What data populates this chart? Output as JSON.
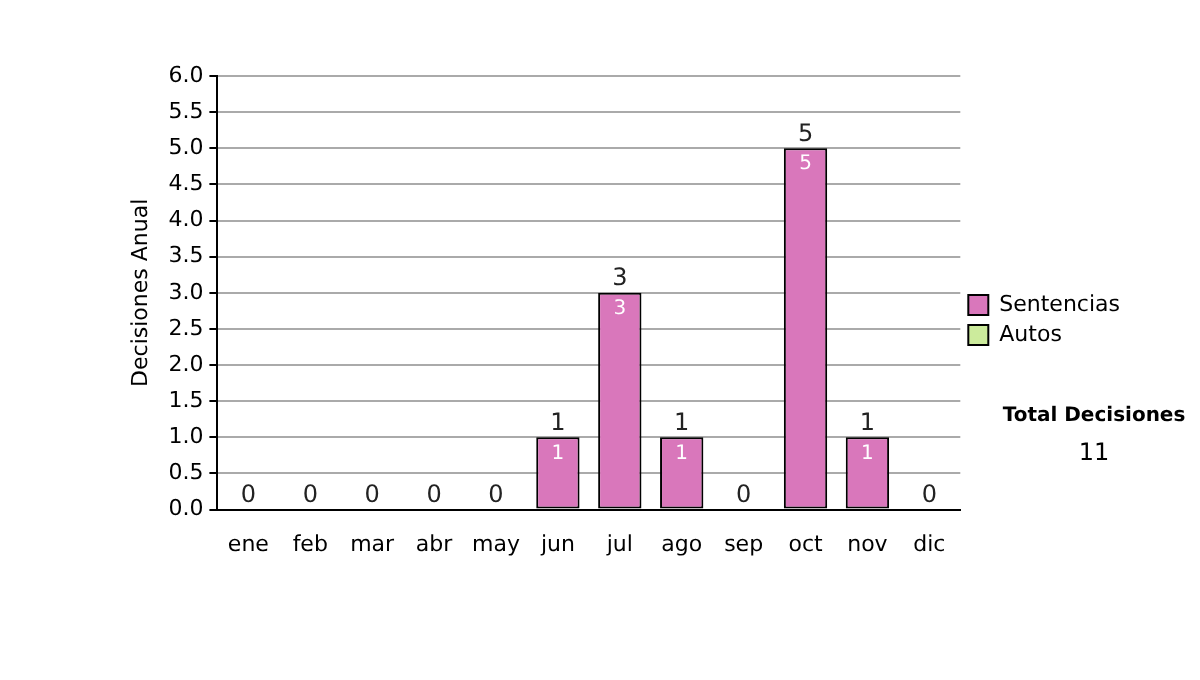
{
  "chart_data": {
    "type": "bar",
    "stacked": true,
    "ylabel": "Decisiones Anual",
    "categories": [
      "ene",
      "feb",
      "mar",
      "abr",
      "may",
      "jun",
      "jul",
      "ago",
      "sep",
      "oct",
      "nov",
      "dic"
    ],
    "series": [
      {
        "name": "Sentencias",
        "color": "#d977bb",
        "values": [
          0,
          0,
          0,
          0,
          0,
          1,
          3,
          1,
          0,
          5,
          1,
          0
        ],
        "value_labels": [
          null,
          null,
          null,
          null,
          null,
          "1",
          "3",
          "1",
          null,
          "5",
          "1",
          null
        ]
      },
      {
        "name": "Autos",
        "color": "#cceb9c",
        "values": [
          0,
          0,
          0,
          0,
          0,
          0,
          0,
          0,
          0,
          0,
          0,
          0
        ]
      }
    ],
    "totals": [
      "0",
      "0",
      "0",
      "0",
      "0",
      "1",
      "3",
      "1",
      "0",
      "5",
      "1",
      "0"
    ],
    "ylim": [
      0,
      6
    ],
    "yticks": [
      {
        "value": 0,
        "label": "0.0"
      },
      {
        "value": 0.5,
        "label": "0.5"
      },
      {
        "value": 1,
        "label": "1.0"
      },
      {
        "value": 1.5,
        "label": "1.5"
      },
      {
        "value": 2,
        "label": "2.0"
      },
      {
        "value": 2.5,
        "label": "2.5"
      },
      {
        "value": 3,
        "label": "3.0"
      },
      {
        "value": 3.5,
        "label": "3.5"
      },
      {
        "value": 4,
        "label": "4.0"
      },
      {
        "value": 4.5,
        "label": "4.5"
      },
      {
        "value": 5,
        "label": "5.0"
      },
      {
        "value": 5.5,
        "label": "5.5"
      },
      {
        "value": 6,
        "label": "6.0"
      }
    ],
    "grid": "y",
    "legend": "right",
    "annotations": [
      "Total Decisiones",
      "11"
    ]
  }
}
